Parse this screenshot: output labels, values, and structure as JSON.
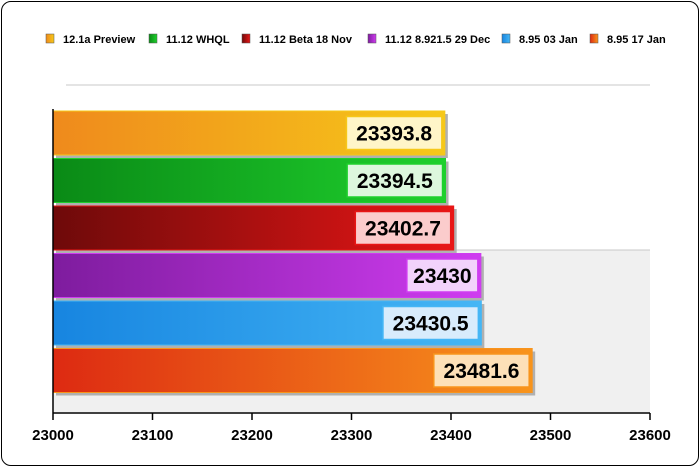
{
  "chart_data": {
    "type": "bar",
    "orientation": "horizontal",
    "series": [
      {
        "name": "12.1a Preview",
        "value": 23393.8,
        "color_start": "#ef8a1c",
        "color_end": "#f6c81a",
        "label_bg": "#fff5c8"
      },
      {
        "name": "11.12 WHQL",
        "value": 23394.5,
        "color_start": "#0a8a16",
        "color_end": "#1fd02d",
        "label_bg": "#ddf7dd"
      },
      {
        "name": "11.12 Beta 18 Nov",
        "value": 23402.7,
        "color_start": "#6e0a0a",
        "color_end": "#e81616",
        "label_bg": "#fbcccc"
      },
      {
        "name": "11.12 8.921.5 29 Dec",
        "value": 23430,
        "color_start": "#7e1c9e",
        "color_end": "#cf3cf0",
        "label_bg": "#f2d2fb"
      },
      {
        "name": "8.95 03 Jan",
        "value": 23430.5,
        "color_start": "#1785e0",
        "color_end": "#45b6f5",
        "label_bg": "#d8ecfc"
      },
      {
        "name": "8.95 17 Jan",
        "value": 23481.6,
        "color_start": "#dd2a12",
        "color_end": "#f8941c",
        "label_bg": "#fde0b8"
      }
    ],
    "value_labels": [
      "23393.8",
      "23394.5",
      "23402.7",
      "23430",
      "23430.5",
      "23481.6"
    ],
    "xlim": [
      23000,
      23600
    ],
    "xticks": [
      "23000",
      "23100",
      "23200",
      "23300",
      "23400",
      "23500",
      "23600"
    ],
    "legend_position": "top",
    "grid": false,
    "title": "",
    "xlabel": "",
    "ylabel": ""
  }
}
